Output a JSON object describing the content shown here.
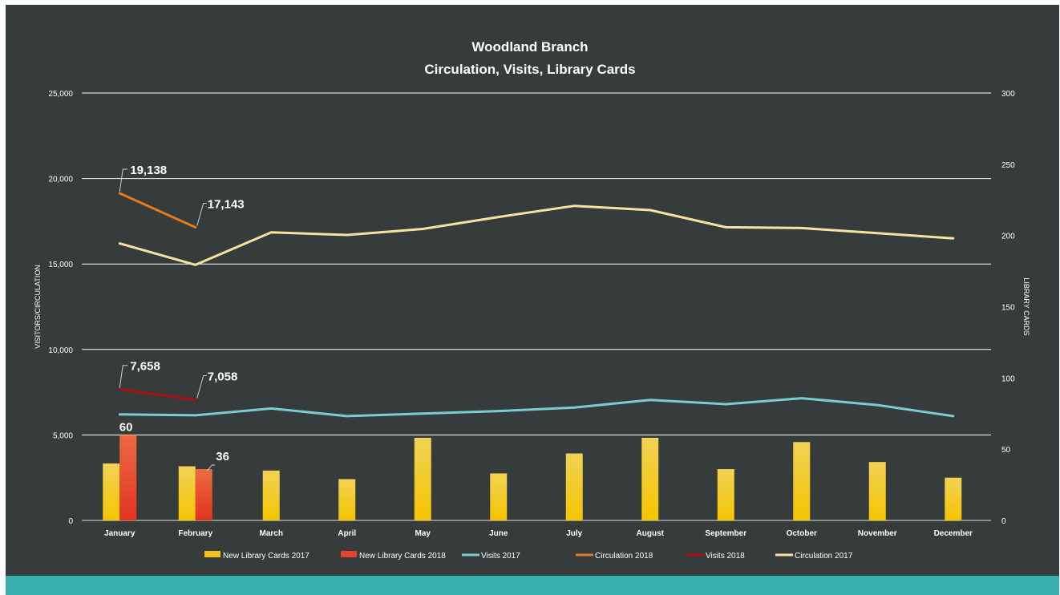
{
  "chart_data": {
    "type": "bar",
    "title": "Woodland Branch",
    "subtitle": "Circulation, Visits, Library Cards",
    "categories": [
      "January",
      "February",
      "March",
      "April",
      "May",
      "June",
      "July",
      "August",
      "September",
      "October",
      "November",
      "December"
    ],
    "y_left": {
      "label": "VISITORS/CIRCULATION",
      "range": [
        0,
        25000
      ],
      "ticks": [
        "0",
        "5,000",
        "10,000",
        "15,000",
        "20,000",
        "25,000"
      ]
    },
    "y_right": {
      "label": "LIBRARY CARDS",
      "range": [
        0,
        300
      ],
      "ticks": [
        "0",
        "50",
        "100",
        "150",
        "200",
        "250",
        "300"
      ]
    },
    "grid": true,
    "legend_position": "bottom",
    "series": [
      {
        "name": "New Library Cards 2017",
        "type": "bar",
        "axis": "right",
        "color": "#f2c318",
        "values": [
          40,
          38,
          35,
          29,
          58,
          33,
          47,
          58,
          36,
          55,
          41,
          30
        ]
      },
      {
        "name": "New Library Cards 2018",
        "type": "bar",
        "axis": "right",
        "color": "#e8412a",
        "values": [
          60,
          36,
          null,
          null,
          null,
          null,
          null,
          null,
          null,
          null,
          null,
          null
        ]
      },
      {
        "name": "Visits  2017",
        "type": "line",
        "axis": "left",
        "color": "#79cdd0",
        "values": [
          6200,
          6150,
          6550,
          6100,
          6250,
          6400,
          6600,
          7050,
          6800,
          7150,
          6750,
          6100
        ]
      },
      {
        "name": "Circulation 2018",
        "type": "line",
        "axis": "left",
        "color": "#e37b1e",
        "values": [
          19138,
          17143,
          null,
          null,
          null,
          null,
          null,
          null,
          null,
          null,
          null,
          null
        ]
      },
      {
        "name": "Visits  2018",
        "type": "line",
        "axis": "left",
        "color": "#b00d0d",
        "values": [
          7658,
          7058,
          null,
          null,
          null,
          null,
          null,
          null,
          null,
          null,
          null,
          null
        ]
      },
      {
        "name": "Circulation 2017",
        "type": "line",
        "axis": "left",
        "color": "#f6e3a0",
        "values": [
          16200,
          14950,
          16850,
          16700,
          17050,
          17750,
          18400,
          18150,
          17150,
          17100,
          16800,
          16500
        ]
      }
    ],
    "annotations": [
      {
        "series": "Circulation 2018",
        "index": 0,
        "text": "19,138"
      },
      {
        "series": "Circulation 2018",
        "index": 1,
        "text": "17,143"
      },
      {
        "series": "Visits  2018",
        "index": 0,
        "text": "7,658"
      },
      {
        "series": "Visits  2018",
        "index": 1,
        "text": "7,058"
      },
      {
        "series": "New Library Cards 2018",
        "index": 0,
        "text": "60"
      },
      {
        "series": "New Library Cards 2018",
        "index": 1,
        "text": "36"
      }
    ]
  }
}
